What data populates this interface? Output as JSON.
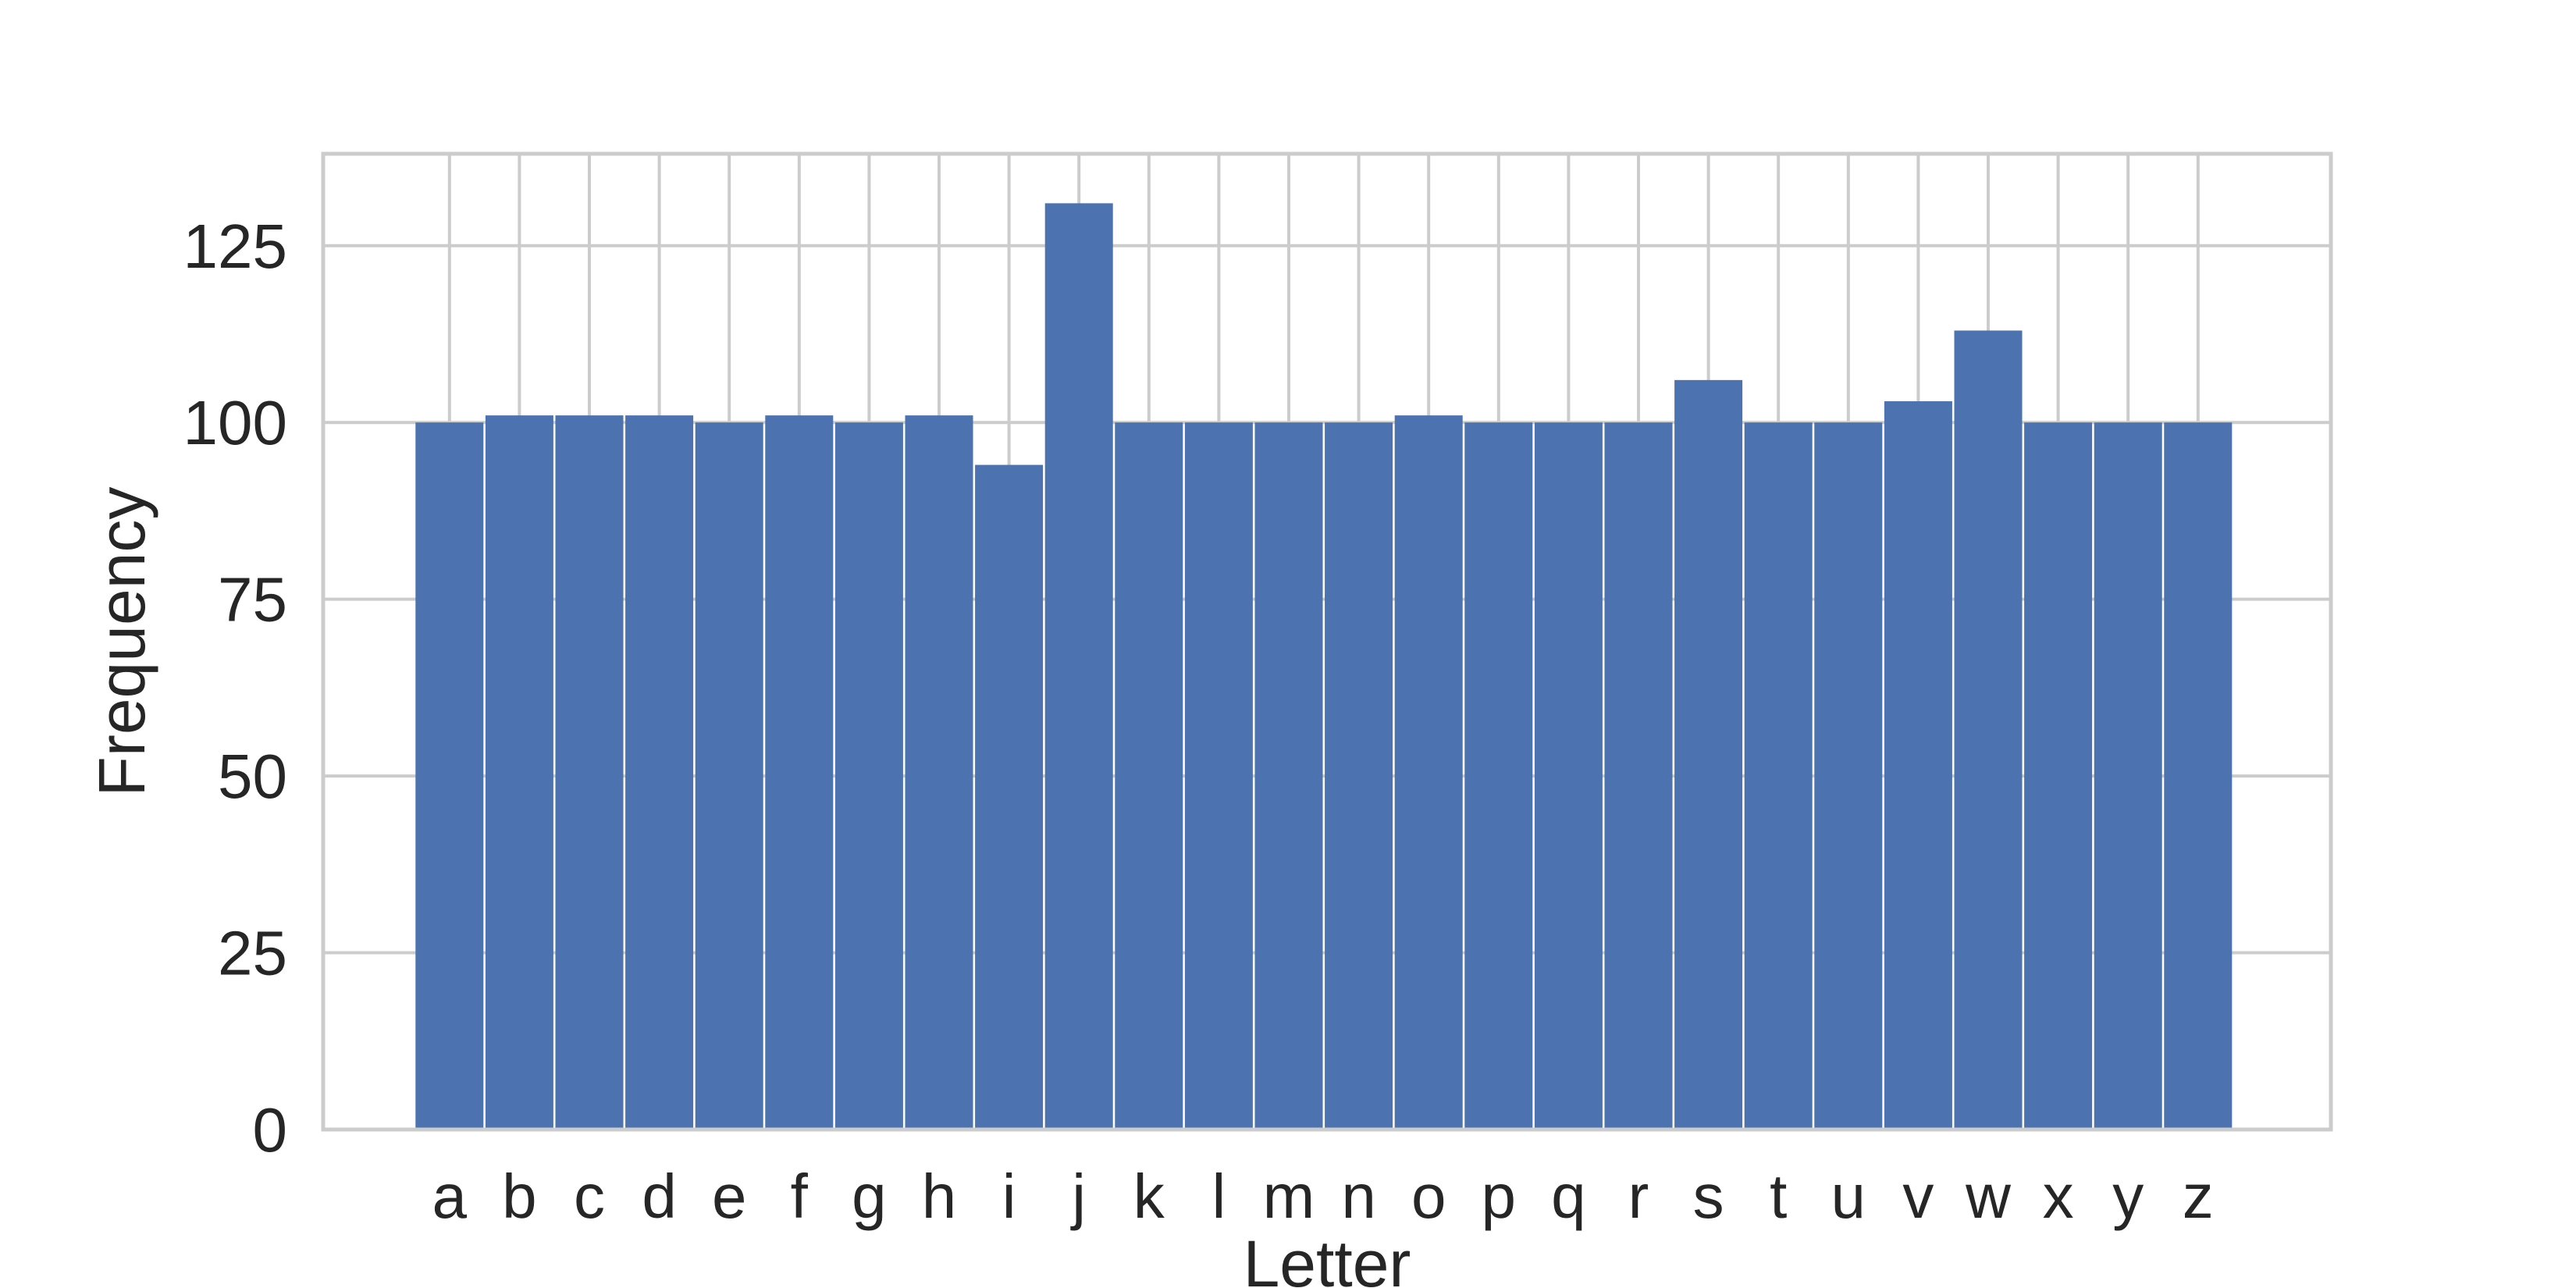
{
  "chart_data": {
    "type": "bar",
    "title": "",
    "xlabel": "Letter",
    "ylabel": "Frequency",
    "categories": [
      "a",
      "b",
      "c",
      "d",
      "e",
      "f",
      "g",
      "h",
      "i",
      "j",
      "k",
      "l",
      "m",
      "n",
      "o",
      "p",
      "q",
      "r",
      "s",
      "t",
      "u",
      "v",
      "w",
      "x",
      "y",
      "z"
    ],
    "values": [
      100,
      101,
      101,
      101,
      100,
      101,
      100,
      101,
      94,
      131,
      100,
      100,
      100,
      100,
      101,
      100,
      100,
      100,
      106,
      100,
      100,
      103,
      113,
      100,
      100,
      100
    ],
    "ylim": [
      0,
      138
    ],
    "yticks": [
      0,
      25,
      50,
      75,
      100,
      125
    ],
    "grid": true,
    "bar_color": "#4c72b0",
    "grid_color": "#cccccc",
    "axes_color": "#cccccc"
  }
}
